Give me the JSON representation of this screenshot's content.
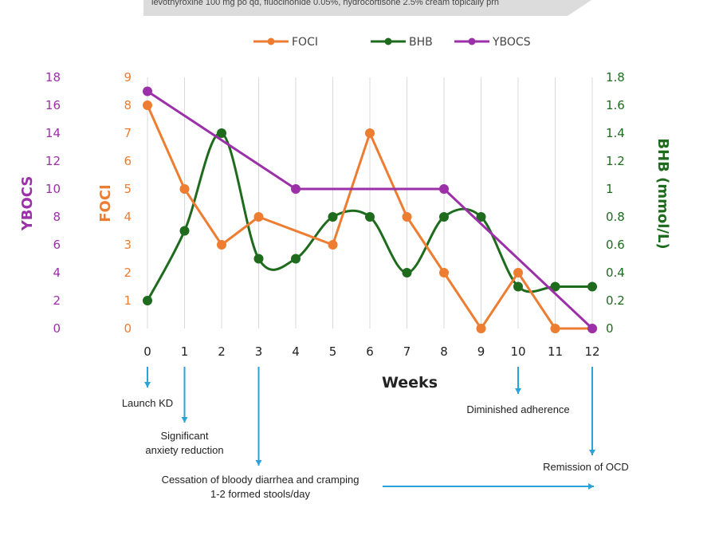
{
  "banner_text": "levothyroxine 100 mg po qd, fluocinonide 0.05%, hydrocortisone 2.5% cream topically prn",
  "colors": {
    "foci": "#ED7D31",
    "bhb": "#1E6B1E",
    "ybocs": "#9B30A8",
    "grid": "#d9d9d9",
    "arrow": "#29A3DA",
    "banner": "#dcdcdc"
  },
  "chart_data": {
    "type": "line",
    "xlabel": "Weeks",
    "x_ticks": [
      "0",
      "1",
      "2",
      "3",
      "4",
      "5",
      "6",
      "7",
      "8",
      "9",
      "10",
      "11",
      "12"
    ],
    "axes": {
      "ybocs": {
        "label": "YBOCS",
        "range": [
          0,
          18
        ],
        "ticks": [
          "0",
          "2",
          "4",
          "6",
          "8",
          "10",
          "12",
          "14",
          "16",
          "18"
        ]
      },
      "foci": {
        "label": "FOCI",
        "range": [
          0,
          9
        ],
        "ticks": [
          "0",
          "1",
          "2",
          "3",
          "4",
          "5",
          "6",
          "7",
          "8",
          "9"
        ]
      },
      "bhb": {
        "label": "BHB (mmol/L)",
        "range": [
          0,
          1.8
        ],
        "ticks": [
          "0",
          "0.2",
          "0.4",
          "0.6",
          "0.8",
          "1",
          "1.2",
          "1.4",
          "1.6",
          "1.8"
        ]
      }
    },
    "legend": {
      "position": "top",
      "entries": [
        "FOCI",
        "BHB",
        "YBOCS"
      ]
    },
    "grid": "vertical",
    "series": [
      {
        "name": "FOCI",
        "axis": "foci",
        "smooth": false,
        "points": [
          [
            0,
            8
          ],
          [
            1,
            5
          ],
          [
            2,
            3
          ],
          [
            3,
            4
          ],
          [
            5,
            3
          ],
          [
            6,
            7
          ],
          [
            7,
            4
          ],
          [
            8,
            2
          ],
          [
            9,
            0
          ],
          [
            10,
            2
          ],
          [
            11,
            0
          ],
          [
            12,
            0
          ]
        ]
      },
      {
        "name": "BHB",
        "axis": "bhb",
        "smooth": true,
        "points": [
          [
            0,
            0.2
          ],
          [
            1,
            0.7
          ],
          [
            2,
            1.4
          ],
          [
            3,
            0.5
          ],
          [
            4,
            0.5
          ],
          [
            5,
            0.8
          ],
          [
            6,
            0.8
          ],
          [
            7,
            0.4
          ],
          [
            8,
            0.8
          ],
          [
            9,
            0.8
          ],
          [
            10,
            0.3
          ],
          [
            11,
            0.3
          ],
          [
            12,
            0.3
          ]
        ]
      },
      {
        "name": "YBOCS",
        "axis": "ybocs",
        "smooth": false,
        "points": [
          [
            0,
            17
          ],
          [
            4,
            10
          ],
          [
            8,
            10
          ],
          [
            12,
            0
          ]
        ]
      }
    ]
  },
  "annotations": [
    {
      "week": 0,
      "lines": [
        "Launch KD"
      ]
    },
    {
      "week": 1,
      "lines": [
        "Significant",
        "anxiety reduction"
      ]
    },
    {
      "week": 3,
      "lines": [
        "Cessation of bloody diarrhea and cramping",
        "1-2 formed stools/day"
      ]
    },
    {
      "week": 10,
      "lines": [
        "Diminished adherence"
      ]
    },
    {
      "week": 12,
      "lines": [
        "Remission of OCD"
      ]
    }
  ]
}
